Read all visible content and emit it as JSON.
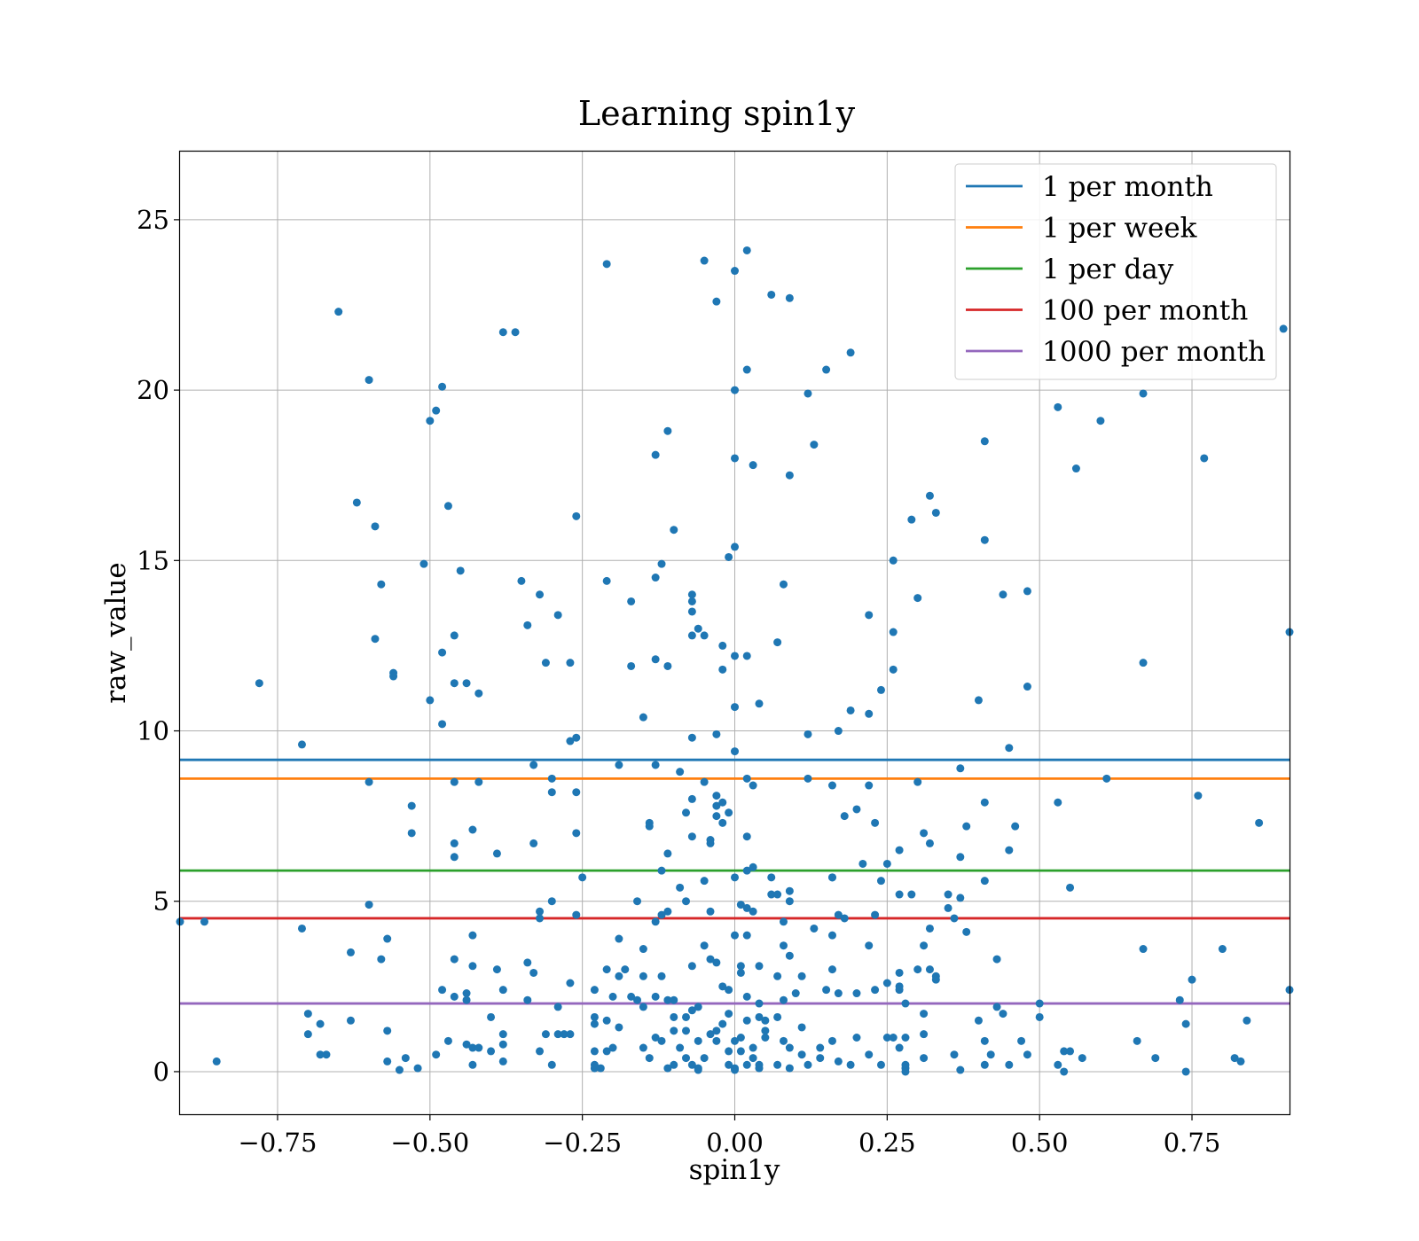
{
  "chart_data": {
    "type": "scatter",
    "title": "Learning spin1y",
    "xlabel": "spin1y",
    "ylabel": "raw_value",
    "xlim": [
      -0.91,
      0.91
    ],
    "ylim": [
      -1.25,
      27
    ],
    "xticks": [
      -0.75,
      -0.5,
      -0.25,
      0.0,
      0.25,
      0.5,
      0.75
    ],
    "xtick_labels": [
      "−0.75",
      "−0.50",
      "−0.25",
      "0.00",
      "0.25",
      "0.50",
      "0.75"
    ],
    "yticks": [
      0,
      5,
      10,
      15,
      20,
      25
    ],
    "ytick_labels": [
      "0",
      "5",
      "10",
      "15",
      "20",
      "25"
    ],
    "grid": true,
    "legend_position": "top-right",
    "point_color": "#1f77b4",
    "hlines": [
      {
        "label": "1 per month",
        "y": 9.15,
        "color": "#1f77b4"
      },
      {
        "label": "1 per week",
        "y": 8.6,
        "color": "#ff7f0e"
      },
      {
        "label": "1 per day",
        "y": 5.9,
        "color": "#2ca02c"
      },
      {
        "label": "100 per month",
        "y": 4.5,
        "color": "#d62728"
      },
      {
        "label": "1000 per month",
        "y": 2.0,
        "color": "#9467bd"
      }
    ],
    "points": [
      [
        0.02,
        24.1
      ],
      [
        -0.05,
        23.8
      ],
      [
        0.0,
        23.5
      ],
      [
        -0.21,
        23.7
      ],
      [
        -0.03,
        22.6
      ],
      [
        0.06,
        22.8
      ],
      [
        0.09,
        22.7
      ],
      [
        -0.65,
        22.3
      ],
      [
        -0.38,
        21.7
      ],
      [
        -0.36,
        21.7
      ],
      [
        0.19,
        21.1
      ],
      [
        0.9,
        21.8
      ],
      [
        0.15,
        20.6
      ],
      [
        0.02,
        20.6
      ],
      [
        -0.6,
        20.3
      ],
      [
        -0.48,
        20.1
      ],
      [
        0.0,
        20.0
      ],
      [
        0.12,
        19.9
      ],
      [
        -0.49,
        19.4
      ],
      [
        -0.5,
        19.1
      ],
      [
        0.53,
        19.5
      ],
      [
        0.6,
        19.1
      ],
      [
        0.67,
        19.9
      ],
      [
        -0.11,
        18.8
      ],
      [
        0.41,
        18.5
      ],
      [
        0.13,
        18.4
      ],
      [
        -0.13,
        18.1
      ],
      [
        0.0,
        18.0
      ],
      [
        0.03,
        17.8
      ],
      [
        0.09,
        17.5
      ],
      [
        0.77,
        18.0
      ],
      [
        0.56,
        17.7
      ],
      [
        0.32,
        16.9
      ],
      [
        -0.62,
        16.7
      ],
      [
        -0.47,
        16.6
      ],
      [
        0.33,
        16.4
      ],
      [
        -0.26,
        16.3
      ],
      [
        0.29,
        16.2
      ],
      [
        -0.59,
        16.0
      ],
      [
        -0.1,
        15.9
      ],
      [
        0.41,
        15.6
      ],
      [
        0.0,
        15.4
      ],
      [
        -0.01,
        15.1
      ],
      [
        0.26,
        15.0
      ],
      [
        -0.51,
        14.9
      ],
      [
        -0.12,
        14.9
      ],
      [
        -0.45,
        14.7
      ],
      [
        -0.21,
        14.4
      ],
      [
        -0.13,
        14.5
      ],
      [
        -0.35,
        14.4
      ],
      [
        -0.58,
        14.3
      ],
      [
        0.08,
        14.3
      ],
      [
        0.48,
        14.1
      ],
      [
        -0.07,
        14.0
      ],
      [
        0.44,
        14.0
      ],
      [
        -0.32,
        14.0
      ],
      [
        0.3,
        13.9
      ],
      [
        -0.07,
        13.8
      ],
      [
        -0.17,
        13.8
      ],
      [
        -0.07,
        13.5
      ],
      [
        0.22,
        13.4
      ],
      [
        -0.29,
        13.4
      ],
      [
        -0.34,
        13.1
      ],
      [
        -0.06,
        13.0
      ],
      [
        0.26,
        12.9
      ],
      [
        0.91,
        12.9
      ],
      [
        -0.07,
        12.8
      ],
      [
        -0.05,
        12.8
      ],
      [
        -0.46,
        12.8
      ],
      [
        -0.59,
        12.7
      ],
      [
        0.07,
        12.6
      ],
      [
        -0.02,
        12.5
      ],
      [
        -0.48,
        12.3
      ],
      [
        0.02,
        12.2
      ],
      [
        0.0,
        12.2
      ],
      [
        -0.13,
        12.1
      ],
      [
        -0.31,
        12.0
      ],
      [
        -0.27,
        12.0
      ],
      [
        0.67,
        12.0
      ],
      [
        -0.17,
        11.9
      ],
      [
        -0.11,
        11.9
      ],
      [
        0.26,
        11.8
      ],
      [
        -0.02,
        11.8
      ],
      [
        -0.56,
        11.7
      ],
      [
        -0.56,
        11.6
      ],
      [
        -0.44,
        11.4
      ],
      [
        -0.46,
        11.4
      ],
      [
        -0.78,
        11.4
      ],
      [
        0.48,
        11.3
      ],
      [
        0.24,
        11.2
      ],
      [
        -0.42,
        11.1
      ],
      [
        -0.5,
        10.9
      ],
      [
        0.4,
        10.9
      ],
      [
        0.04,
        10.8
      ],
      [
        0.0,
        10.7
      ],
      [
        0.19,
        10.6
      ],
      [
        0.22,
        10.5
      ],
      [
        -0.15,
        10.4
      ],
      [
        -0.48,
        10.2
      ],
      [
        0.17,
        10.0
      ],
      [
        -0.03,
        9.9
      ],
      [
        0.12,
        9.9
      ],
      [
        -0.26,
        9.8
      ],
      [
        -0.07,
        9.8
      ],
      [
        -0.27,
        9.7
      ],
      [
        -0.71,
        9.6
      ],
      [
        0.45,
        9.5
      ],
      [
        0.0,
        9.4
      ],
      [
        -0.33,
        9.0
      ],
      [
        -0.19,
        9.0
      ],
      [
        -0.13,
        9.0
      ],
      [
        0.37,
        8.9
      ],
      [
        -0.09,
        8.8
      ],
      [
        0.12,
        8.6
      ],
      [
        -0.3,
        8.6
      ],
      [
        -0.46,
        8.5
      ],
      [
        -0.42,
        8.5
      ],
      [
        -0.6,
        8.5
      ],
      [
        0.02,
        8.6
      ],
      [
        0.03,
        8.4
      ],
      [
        0.16,
        8.4
      ],
      [
        0.22,
        8.4
      ],
      [
        0.3,
        8.5
      ],
      [
        0.61,
        8.6
      ],
      [
        -0.05,
        8.5
      ],
      [
        -0.03,
        8.1
      ],
      [
        -0.3,
        8.2
      ],
      [
        -0.26,
        8.2
      ],
      [
        0.76,
        8.1
      ],
      [
        -0.07,
        8.0
      ],
      [
        0.53,
        7.9
      ],
      [
        -0.02,
        7.9
      ],
      [
        0.41,
        7.9
      ],
      [
        -0.03,
        7.8
      ],
      [
        -0.53,
        7.8
      ],
      [
        0.2,
        7.7
      ],
      [
        -0.01,
        7.6
      ],
      [
        -0.08,
        7.6
      ],
      [
        0.18,
        7.5
      ],
      [
        -0.03,
        7.5
      ],
      [
        -0.02,
        7.3
      ],
      [
        0.23,
        7.3
      ],
      [
        -0.14,
        7.3
      ],
      [
        -0.14,
        7.2
      ],
      [
        0.38,
        7.2
      ],
      [
        0.46,
        7.2
      ],
      [
        0.86,
        7.3
      ],
      [
        -0.43,
        7.1
      ],
      [
        -0.53,
        7.0
      ],
      [
        -0.26,
        7.0
      ],
      [
        0.31,
        7.0
      ],
      [
        -0.07,
        6.9
      ],
      [
        0.02,
        6.9
      ],
      [
        -0.46,
        6.7
      ],
      [
        -0.33,
        6.7
      ],
      [
        -0.04,
        6.7
      ],
      [
        -0.04,
        6.8
      ],
      [
        0.32,
        6.7
      ],
      [
        0.27,
        6.5
      ],
      [
        0.45,
        6.5
      ],
      [
        -0.11,
        6.4
      ],
      [
        -0.39,
        6.4
      ],
      [
        -0.46,
        6.3
      ],
      [
        0.37,
        6.3
      ],
      [
        0.21,
        6.1
      ],
      [
        0.25,
        6.1
      ],
      [
        0.03,
        6.0
      ],
      [
        0.02,
        5.9
      ],
      [
        -0.12,
        5.9
      ],
      [
        -0.25,
        5.7
      ],
      [
        0.0,
        5.7
      ],
      [
        0.06,
        5.7
      ],
      [
        0.16,
        5.7
      ],
      [
        0.16,
        5.7
      ],
      [
        -0.05,
        5.6
      ],
      [
        0.24,
        5.6
      ],
      [
        0.41,
        5.6
      ],
      [
        0.55,
        5.4
      ],
      [
        -0.09,
        5.4
      ],
      [
        0.06,
        5.2
      ],
      [
        0.07,
        5.2
      ],
      [
        0.09,
        5.3
      ],
      [
        0.27,
        5.2
      ],
      [
        0.29,
        5.2
      ],
      [
        0.35,
        5.2
      ],
      [
        -0.3,
        5.0
      ],
      [
        -0.16,
        5.0
      ],
      [
        -0.08,
        5.0
      ],
      [
        0.09,
        5.0
      ],
      [
        0.37,
        5.1
      ],
      [
        -0.6,
        4.9
      ],
      [
        0.01,
        4.9
      ],
      [
        0.02,
        4.8
      ],
      [
        0.03,
        4.7
      ],
      [
        -0.04,
        4.7
      ],
      [
        0.35,
        4.8
      ],
      [
        -0.32,
        4.7
      ],
      [
        -0.11,
        4.7
      ],
      [
        0.17,
        4.6
      ],
      [
        0.23,
        4.6
      ],
      [
        -0.26,
        4.6
      ],
      [
        -0.12,
        4.6
      ],
      [
        0.18,
        4.5
      ],
      [
        -0.32,
        4.5
      ],
      [
        -0.13,
        4.4
      ],
      [
        0.36,
        4.5
      ],
      [
        -0.91,
        4.4
      ],
      [
        -0.87,
        4.4
      ],
      [
        0.13,
        4.2
      ],
      [
        0.32,
        4.2
      ],
      [
        -0.71,
        4.2
      ],
      [
        0.08,
        4.4
      ],
      [
        0.38,
        4.1
      ],
      [
        0.0,
        4.0
      ],
      [
        0.02,
        4.0
      ],
      [
        -0.43,
        4.0
      ],
      [
        0.16,
        4.0
      ],
      [
        -0.57,
        3.9
      ],
      [
        -0.19,
        3.9
      ],
      [
        0.08,
        3.7
      ],
      [
        0.22,
        3.7
      ],
      [
        -0.05,
        3.7
      ],
      [
        0.31,
        3.7
      ],
      [
        -0.15,
        3.6
      ],
      [
        0.8,
        3.6
      ],
      [
        0.67,
        3.6
      ],
      [
        -0.63,
        3.5
      ],
      [
        -0.58,
        3.3
      ],
      [
        -0.46,
        3.3
      ],
      [
        0.43,
        3.3
      ],
      [
        -0.03,
        3.2
      ],
      [
        -0.34,
        3.2
      ],
      [
        0.09,
        3.4
      ],
      [
        -0.04,
        3.3
      ],
      [
        -0.07,
        3.1
      ],
      [
        0.01,
        3.1
      ],
      [
        0.04,
        3.1
      ],
      [
        -0.43,
        3.1
      ],
      [
        -0.18,
        3.0
      ],
      [
        -0.21,
        3.0
      ],
      [
        0.16,
        3.0
      ],
      [
        0.27,
        2.9
      ],
      [
        0.32,
        3.0
      ],
      [
        -0.39,
        3.0
      ],
      [
        0.3,
        3.0
      ],
      [
        -0.33,
        2.9
      ],
      [
        0.01,
        2.9
      ],
      [
        0.07,
        2.8
      ],
      [
        -0.19,
        2.8
      ],
      [
        0.11,
        2.8
      ],
      [
        0.33,
        2.8
      ],
      [
        0.33,
        2.7
      ],
      [
        -0.15,
        2.8
      ],
      [
        -0.12,
        2.8
      ],
      [
        0.25,
        2.6
      ],
      [
        0.27,
        2.5
      ],
      [
        0.27,
        2.4
      ],
      [
        0.23,
        2.4
      ],
      [
        -0.27,
        2.6
      ],
      [
        -0.48,
        2.4
      ],
      [
        -0.38,
        2.4
      ],
      [
        -0.02,
        2.5
      ],
      [
        -0.01,
        2.4
      ],
      [
        -0.23,
        2.4
      ],
      [
        -0.44,
        2.3
      ],
      [
        0.15,
        2.4
      ],
      [
        0.2,
        2.3
      ],
      [
        0.17,
        2.3
      ],
      [
        0.75,
        2.7
      ],
      [
        0.91,
        2.4
      ],
      [
        -0.2,
        2.2
      ],
      [
        -0.13,
        2.2
      ],
      [
        -0.17,
        2.2
      ],
      [
        -0.16,
        2.1
      ],
      [
        -0.46,
        2.2
      ],
      [
        -0.44,
        2.1
      ],
      [
        -0.34,
        2.1
      ],
      [
        0.02,
        2.2
      ],
      [
        0.08,
        2.1
      ],
      [
        0.1,
        2.3
      ],
      [
        -0.1,
        2.1
      ],
      [
        -0.11,
        2.1
      ],
      [
        0.04,
        2.0
      ],
      [
        -0.06,
        1.9
      ],
      [
        0.28,
        2.0
      ],
      [
        0.43,
        1.9
      ],
      [
        0.5,
        2.0
      ],
      [
        0.73,
        2.1
      ],
      [
        -0.29,
        1.9
      ],
      [
        -0.15,
        1.9
      ],
      [
        -0.07,
        1.8
      ],
      [
        -0.01,
        1.7
      ],
      [
        0.07,
        1.6
      ],
      [
        0.31,
        1.7
      ],
      [
        0.44,
        1.7
      ],
      [
        -0.7,
        1.7
      ],
      [
        -0.23,
        1.6
      ],
      [
        -0.21,
        1.5
      ],
      [
        -0.1,
        1.6
      ],
      [
        -0.08,
        1.6
      ],
      [
        0.04,
        1.6
      ],
      [
        0.05,
        1.5
      ],
      [
        -0.4,
        1.6
      ],
      [
        -0.63,
        1.5
      ],
      [
        -0.68,
        1.4
      ],
      [
        -0.23,
        1.4
      ],
      [
        -0.02,
        1.4
      ],
      [
        0.02,
        1.5
      ],
      [
        0.4,
        1.5
      ],
      [
        0.5,
        1.6
      ],
      [
        0.74,
        1.4
      ],
      [
        0.84,
        1.5
      ],
      [
        -0.03,
        1.2
      ],
      [
        0.05,
        1.2
      ],
      [
        -0.19,
        1.3
      ],
      [
        -0.1,
        1.2
      ],
      [
        -0.08,
        1.2
      ],
      [
        -0.04,
        1.1
      ],
      [
        0.11,
        1.3
      ],
      [
        0.31,
        1.1
      ],
      [
        -0.57,
        1.2
      ],
      [
        -0.7,
        1.1
      ],
      [
        -0.38,
        1.1
      ],
      [
        -0.31,
        1.1
      ],
      [
        -0.29,
        1.1
      ],
      [
        -0.28,
        1.1
      ],
      [
        -0.27,
        1.1
      ],
      [
        -0.13,
        1.0
      ],
      [
        -0.12,
        0.9
      ],
      [
        0.01,
        1.0
      ],
      [
        0.0,
        0.9
      ],
      [
        0.05,
        1.0
      ],
      [
        0.08,
        0.9
      ],
      [
        -0.06,
        0.9
      ],
      [
        -0.03,
        0.9
      ],
      [
        0.16,
        0.9
      ],
      [
        0.2,
        1.0
      ],
      [
        0.25,
        1.0
      ],
      [
        0.26,
        1.0
      ],
      [
        0.28,
        1.0
      ],
      [
        0.41,
        0.9
      ],
      [
        0.47,
        0.9
      ],
      [
        0.66,
        0.9
      ],
      [
        -0.47,
        0.9
      ],
      [
        -0.44,
        0.8
      ],
      [
        -0.38,
        0.8
      ],
      [
        -0.2,
        0.7
      ],
      [
        -0.15,
        0.7
      ],
      [
        -0.09,
        0.7
      ],
      [
        0.03,
        0.7
      ],
      [
        0.09,
        0.7
      ],
      [
        0.14,
        0.7
      ],
      [
        0.27,
        0.7
      ],
      [
        -0.43,
        0.7
      ],
      [
        -0.42,
        0.7
      ],
      [
        -0.4,
        0.6
      ],
      [
        -0.32,
        0.6
      ],
      [
        -0.23,
        0.6
      ],
      [
        -0.21,
        0.6
      ],
      [
        0.54,
        0.6
      ],
      [
        0.55,
        0.6
      ],
      [
        -0.01,
        0.6
      ],
      [
        0.01,
        0.6
      ],
      [
        0.11,
        0.5
      ],
      [
        0.22,
        0.5
      ],
      [
        0.36,
        0.5
      ],
      [
        0.42,
        0.5
      ],
      [
        0.48,
        0.5
      ],
      [
        -0.49,
        0.5
      ],
      [
        -0.54,
        0.4
      ],
      [
        -0.67,
        0.5
      ],
      [
        -0.68,
        0.5
      ],
      [
        -0.14,
        0.4
      ],
      [
        -0.08,
        0.4
      ],
      [
        -0.05,
        0.4
      ],
      [
        0.03,
        0.4
      ],
      [
        0.14,
        0.4
      ],
      [
        0.31,
        0.4
      ],
      [
        0.57,
        0.4
      ],
      [
        0.69,
        0.4
      ],
      [
        0.82,
        0.4
      ],
      [
        0.83,
        0.3
      ],
      [
        -0.85,
        0.3
      ],
      [
        -0.57,
        0.3
      ],
      [
        -0.38,
        0.3
      ],
      [
        -0.3,
        0.2
      ],
      [
        -0.23,
        0.2
      ],
      [
        -0.1,
        0.2
      ],
      [
        -0.07,
        0.2
      ],
      [
        -0.01,
        0.2
      ],
      [
        0.02,
        0.2
      ],
      [
        0.04,
        0.2
      ],
      [
        0.07,
        0.2
      ],
      [
        0.12,
        0.2
      ],
      [
        0.17,
        0.3
      ],
      [
        0.19,
        0.2
      ],
      [
        0.24,
        0.2
      ],
      [
        0.28,
        0.2
      ],
      [
        0.41,
        0.2
      ],
      [
        0.45,
        0.2
      ],
      [
        0.53,
        0.2
      ],
      [
        -0.52,
        0.1
      ],
      [
        -0.43,
        0.2
      ],
      [
        -0.23,
        0.1
      ],
      [
        -0.22,
        0.1
      ],
      [
        -0.11,
        0.1
      ],
      [
        -0.06,
        0.1
      ],
      [
        0.0,
        0.1
      ],
      [
        0.04,
        0.1
      ],
      [
        0.09,
        0.1
      ],
      [
        0.28,
        0.1
      ],
      [
        -0.55,
        0.05
      ],
      [
        -0.06,
        0.05
      ],
      [
        0.0,
        0.05
      ],
      [
        0.37,
        0.05
      ],
      [
        0.54,
        0.0
      ],
      [
        0.74,
        0.0
      ],
      [
        0.28,
        0.0
      ]
    ]
  }
}
